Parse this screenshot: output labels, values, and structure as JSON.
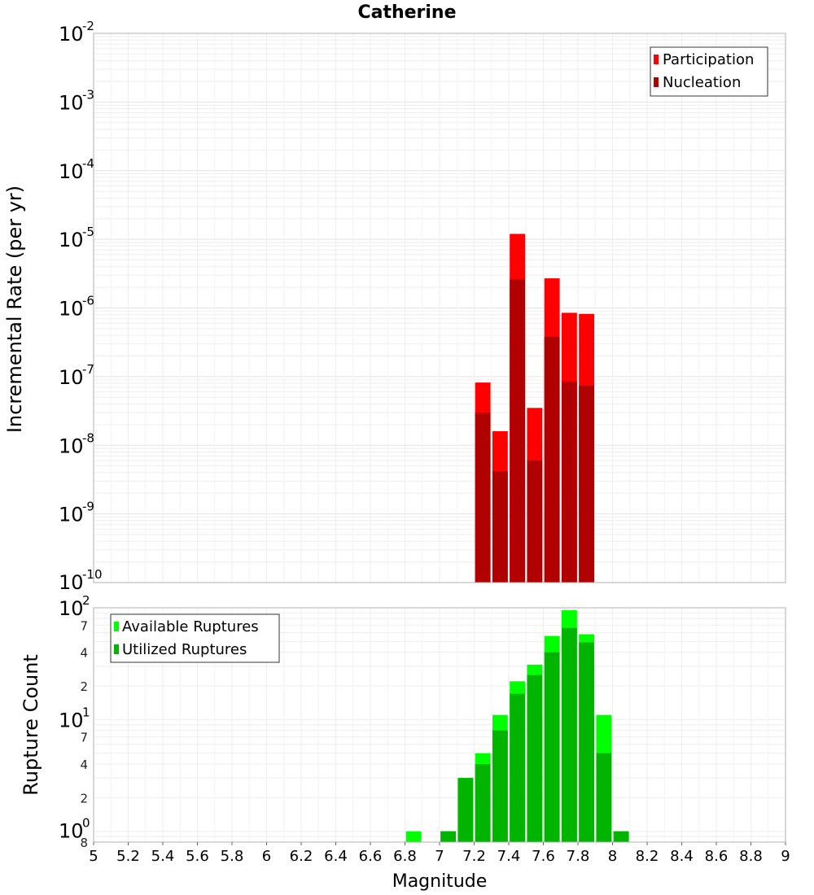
{
  "chart_data": {
    "title": "Catherine",
    "xlabel": "Magnitude",
    "xlim": [
      5,
      9
    ],
    "x_ticks": [
      5,
      5.2,
      5.4,
      5.6,
      5.8,
      6,
      6.2,
      6.4,
      6.6,
      6.8,
      7,
      7.2,
      7.4,
      7.6,
      7.8,
      8,
      8.2,
      8.4,
      8.6,
      8.8,
      9
    ],
    "x_tick_labels": [
      "5",
      "5.2",
      "5.4",
      "5.6",
      "5.8",
      "6",
      "6.2",
      "6.4",
      "6.6",
      "6.8",
      "7",
      "7.2",
      "7.4",
      "7.6",
      "7.8",
      "8",
      "8.2",
      "8.4",
      "8.6",
      "8.8",
      "9"
    ],
    "bin_width": 0.1,
    "panels": [
      {
        "type": "bar",
        "scale": "log",
        "ylabel": "Incremental Rate (per yr)",
        "ylim_exp": [
          -10,
          -2
        ],
        "y_decades": [
          {
            "base": "10",
            "exp": "-2"
          },
          {
            "base": "10",
            "exp": "-3"
          },
          {
            "base": "10",
            "exp": "-4"
          },
          {
            "base": "10",
            "exp": "-5"
          },
          {
            "base": "10",
            "exp": "-6"
          },
          {
            "base": "10",
            "exp": "-7"
          },
          {
            "base": "10",
            "exp": "-8"
          },
          {
            "base": "10",
            "exp": "-9"
          },
          {
            "base": "10",
            "exp": "-10"
          }
        ],
        "legend_position": "top-right",
        "series": [
          {
            "name": "Participation",
            "color": "#ff0000",
            "x": [
              7.25,
              7.35,
              7.45,
              7.55,
              7.65,
              7.75,
              7.85
            ],
            "values": [
              8.2e-08,
              1.6e-08,
              1.2e-05,
              3.5e-08,
              2.7e-06,
              8.5e-07,
              8.2e-07
            ]
          },
          {
            "name": "Nucleation",
            "color": "#b00000",
            "x": [
              7.25,
              7.35,
              7.45,
              7.55,
              7.65,
              7.75,
              7.85
            ],
            "values": [
              3e-08,
              4.2e-09,
              2.6e-06,
              6e-09,
              3.8e-07,
              8.5e-08,
              7.4e-08
            ]
          }
        ]
      },
      {
        "type": "bar",
        "scale": "log",
        "ylabel": "Rupture Count",
        "ylim": [
          0.8,
          100
        ],
        "y_decades": [
          {
            "base": "10",
            "exp": "2"
          },
          {
            "base": "10",
            "exp": "1"
          },
          {
            "base": "10",
            "exp": "0"
          }
        ],
        "y_minor_ticks": [
          "7",
          "4",
          "2",
          "7",
          "4",
          "2",
          "8"
        ],
        "legend_position": "top-left",
        "series": [
          {
            "name": "Available Ruptures",
            "color": "#00ff00",
            "x": [
              6.85,
              7.05,
              7.15,
              7.25,
              7.35,
              7.45,
              7.55,
              7.65,
              7.75,
              7.85,
              7.95,
              8.05
            ],
            "values": [
              1,
              1,
              3,
              5,
              11,
              22,
              31,
              56,
              95,
              58,
              11,
              1
            ]
          },
          {
            "name": "Utilized Ruptures",
            "color": "#00b400",
            "x": [
              6.85,
              7.05,
              7.15,
              7.25,
              7.35,
              7.45,
              7.55,
              7.65,
              7.75,
              7.85,
              7.95,
              8.05
            ],
            "values": [
              0,
              1,
              3,
              4,
              8,
              17,
              25,
              40,
              66,
              49,
              5,
              1
            ]
          }
        ]
      }
    ]
  }
}
